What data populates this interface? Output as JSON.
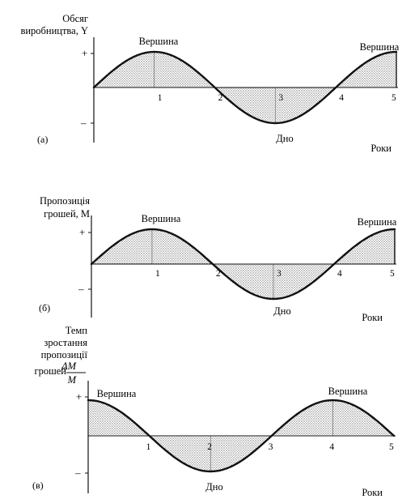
{
  "chart_data": [
    {
      "type": "area",
      "panel_label": "(а)",
      "ylabel": [
        "Обсяг",
        "виробництва, Y"
      ],
      "xlabel": "Роки",
      "ytick_labels": [
        "+",
        "–"
      ],
      "x": [
        0,
        1,
        2,
        3,
        4,
        5
      ],
      "xtick_labels": [
        "1",
        "2",
        "3",
        "4",
        "5"
      ],
      "y": [
        0,
        1,
        0,
        -1,
        0,
        1
      ],
      "curve": "sine",
      "ylim": [
        -1,
        1
      ],
      "annotations": [
        {
          "text": "Вершина",
          "x": 1,
          "y": 1
        },
        {
          "text": "Дно",
          "x": 3,
          "y": -1
        },
        {
          "text": "Вершина",
          "x": 5,
          "y": 1
        }
      ]
    },
    {
      "type": "area",
      "panel_label": "(б)",
      "ylabel": [
        "Пропозиція",
        "грошей, M"
      ],
      "xlabel": "Роки",
      "ytick_labels": [
        "+",
        "–"
      ],
      "x": [
        0,
        1,
        2,
        3,
        4,
        5
      ],
      "xtick_labels": [
        "1",
        "2",
        "3",
        "4",
        "5"
      ],
      "y": [
        0,
        1,
        0,
        -1,
        0,
        1
      ],
      "curve": "sine",
      "ylim": [
        -1,
        1
      ],
      "annotations": [
        {
          "text": "Вершина",
          "x": 1,
          "y": 1
        },
        {
          "text": "Дно",
          "x": 3,
          "y": -1
        },
        {
          "text": "Вершина",
          "x": 5,
          "y": 1
        }
      ]
    },
    {
      "type": "area",
      "panel_label": "(в)",
      "ylabel": [
        "Темп",
        "зростання",
        "пропозиції",
        "грошей"
      ],
      "ylabel_fraction": {
        "numerator": "ΔM",
        "denominator": "M"
      },
      "xlabel": "Роки",
      "ytick_labels": [
        "+",
        "–"
      ],
      "x": [
        0,
        1,
        2,
        3,
        4,
        5
      ],
      "xtick_labels": [
        "1",
        "2",
        "3",
        "4",
        "5"
      ],
      "y": [
        1,
        0,
        -1,
        0,
        1,
        0
      ],
      "curve": "cosine",
      "ylim": [
        -1,
        1
      ],
      "annotations": [
        {
          "text": "Вершина",
          "x": 0,
          "y": 1
        },
        {
          "text": "Дно",
          "x": 2,
          "y": -1
        },
        {
          "text": "Вершина",
          "x": 4,
          "y": 1
        }
      ]
    }
  ]
}
